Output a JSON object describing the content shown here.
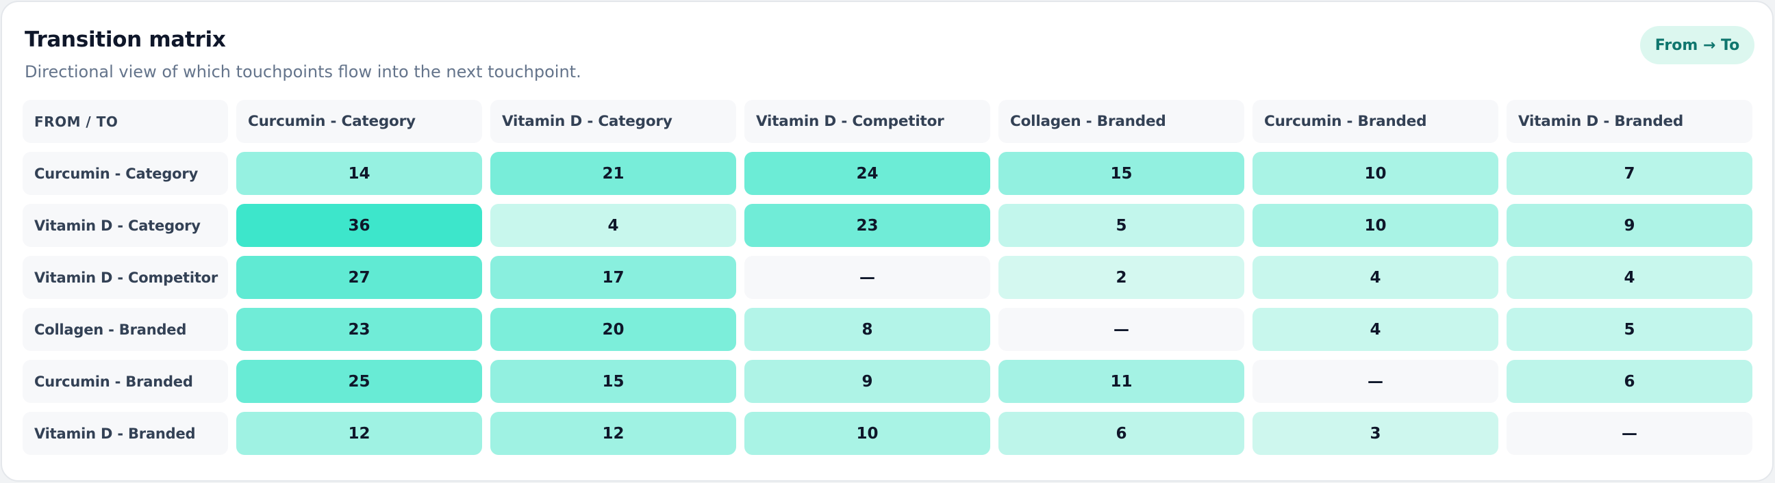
{
  "header": {
    "title": "Transition matrix",
    "subtitle": "Directional view of which touchpoints flow into the next touchpoint.",
    "badge": "From → To"
  },
  "matrix": {
    "corner_label": "FROM / TO",
    "columns": [
      "Curcumin - Category",
      "Vitamin D - Category",
      "Vitamin D - Competitor",
      "Collagen - Branded",
      "Curcumin - Branded",
      "Vitamin D - Branded"
    ],
    "rows": [
      {
        "label": "Curcumin - Category",
        "values": [
          "14",
          "21",
          "24",
          "15",
          "10",
          "7"
        ]
      },
      {
        "label": "Vitamin D - Category",
        "values": [
          "36",
          "4",
          "23",
          "5",
          "10",
          "9"
        ]
      },
      {
        "label": "Vitamin D - Competitor",
        "values": [
          "27",
          "17",
          "—",
          "2",
          "4",
          "4"
        ]
      },
      {
        "label": "Collagen - Branded",
        "values": [
          "23",
          "20",
          "8",
          "—",
          "4",
          "5"
        ]
      },
      {
        "label": "Curcumin - Branded",
        "values": [
          "25",
          "15",
          "9",
          "11",
          "—",
          "6"
        ]
      },
      {
        "label": "Vitamin D - Branded",
        "values": [
          "12",
          "12",
          "10",
          "6",
          "3",
          "—"
        ]
      }
    ],
    "heat_color_min": "#e5faf4",
    "heat_color_max": "#3de6cb",
    "empty_cell_color": "#f7f8fa",
    "max_value": 36
  }
}
